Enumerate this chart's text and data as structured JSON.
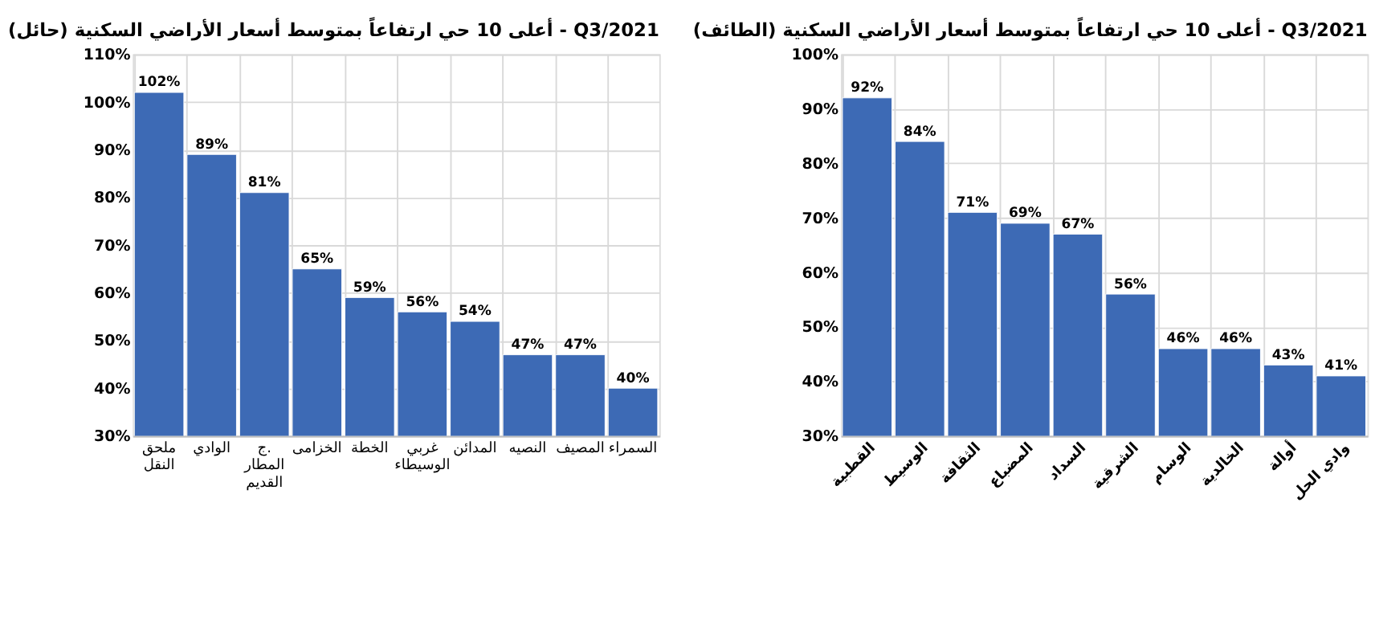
{
  "chart_data": [
    {
      "type": "bar",
      "title": "أعلى 10 حي ارتفاعاً بمتوسط أسعار الأراضي السكنية (حائل) - Q3/2021",
      "categories": [
        "ملحق النقل",
        "الوادي",
        "ج. المطار\nالقديم",
        "الخزامى",
        "الخطة",
        "غربي\nالوسيطاء",
        "المدائن",
        "النصيه",
        "المصيف",
        "السمراء"
      ],
      "values": [
        102,
        89,
        81,
        65,
        59,
        56,
        54,
        47,
        47,
        40
      ],
      "value_labels": [
        "102%",
        "89%",
        "81%",
        "65%",
        "59%",
        "56%",
        "54%",
        "47%",
        "47%",
        "40%"
      ],
      "color": "#3d6ab5",
      "ylim": [
        30,
        110
      ],
      "yticks": [
        {
          "value": 30,
          "label": "30%"
        },
        {
          "value": 40,
          "label": "40%"
        },
        {
          "value": 50,
          "label": "50%"
        },
        {
          "value": 60,
          "label": "60%"
        },
        {
          "value": 70,
          "label": "70%"
        },
        {
          "value": 80,
          "label": "80%"
        },
        {
          "value": 90,
          "label": "90%"
        },
        {
          "value": 100,
          "label": "100%"
        },
        {
          "value": 110,
          "label": "110%"
        }
      ],
      "grid": true
    },
    {
      "type": "bar",
      "title": "أعلى 10 حي ارتفاعاً بمتوسط أسعار الأراضي السكنية (الطائف) - Q3/2021",
      "categories": [
        "القطبية",
        "الوسيط",
        "الثقافة",
        "المضباع",
        "السداد",
        "الشرقية",
        "الوسام",
        "الخالدية",
        "أوالة",
        "وادي الحل"
      ],
      "values": [
        92,
        84,
        71,
        69,
        67,
        56,
        46,
        46,
        43,
        41
      ],
      "value_labels": [
        "92%",
        "84%",
        "71%",
        "69%",
        "67%",
        "56%",
        "46%",
        "46%",
        "43%",
        "41%"
      ],
      "color": "#3d6ab5",
      "ylim": [
        30,
        100
      ],
      "yticks": [
        {
          "value": 30,
          "label": "30%"
        },
        {
          "value": 40,
          "label": "40%"
        },
        {
          "value": 50,
          "label": "50%"
        },
        {
          "value": 60,
          "label": "60%"
        },
        {
          "value": 70,
          "label": "70%"
        },
        {
          "value": 80,
          "label": "80%"
        },
        {
          "value": 90,
          "label": "90%"
        },
        {
          "value": 100,
          "label": "100%"
        }
      ],
      "grid": true
    }
  ]
}
